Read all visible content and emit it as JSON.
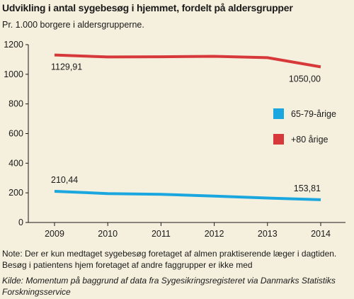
{
  "title": "Udvikling i antal sygebesøg i hjemmet, fordelt på aldersgrupper",
  "subtitle": "Pr. 1.000 borgere i aldersgrupperne.",
  "note": "Note: Der er kun medtaget sygebesøg foretaget af almen praktiserende læger i dagtiden. Besøg i patientens hjem foretaget af andre faggrupper er ikke med",
  "source": "Kilde: Momentum på baggrund af data fra Sygesikringsregisteret via Danmarks Statistiks Forskningsservice",
  "colors": {
    "series_young": "#1aa7e0",
    "series_old": "#d7393b",
    "background": "#f5efdd"
  },
  "chart_data": {
    "type": "line",
    "x": [
      "2009",
      "2010",
      "2011",
      "2012",
      "2013",
      "2014"
    ],
    "ylim": [
      0,
      1200
    ],
    "yticks": [
      "0",
      "200",
      "400",
      "600",
      "800",
      "1000",
      "1200"
    ],
    "grid": false,
    "legend_position": "right",
    "series": [
      {
        "name": "65-79-årige",
        "color": "#1aa7e0",
        "values": [
          210.44,
          195,
          190,
          178,
          165,
          153.81
        ]
      },
      {
        "name": "+80 årige",
        "color": "#d7393b",
        "values": [
          1129.91,
          1117,
          1118,
          1121,
          1112,
          1050.0
        ]
      }
    ],
    "data_labels": [
      {
        "text": "1129,91",
        "series": 1,
        "point": 0
      },
      {
        "text": "1050,00",
        "series": 1,
        "point": 5
      },
      {
        "text": "210,44",
        "series": 0,
        "point": 0
      },
      {
        "text": "153,81",
        "series": 0,
        "point": 5
      }
    ]
  }
}
